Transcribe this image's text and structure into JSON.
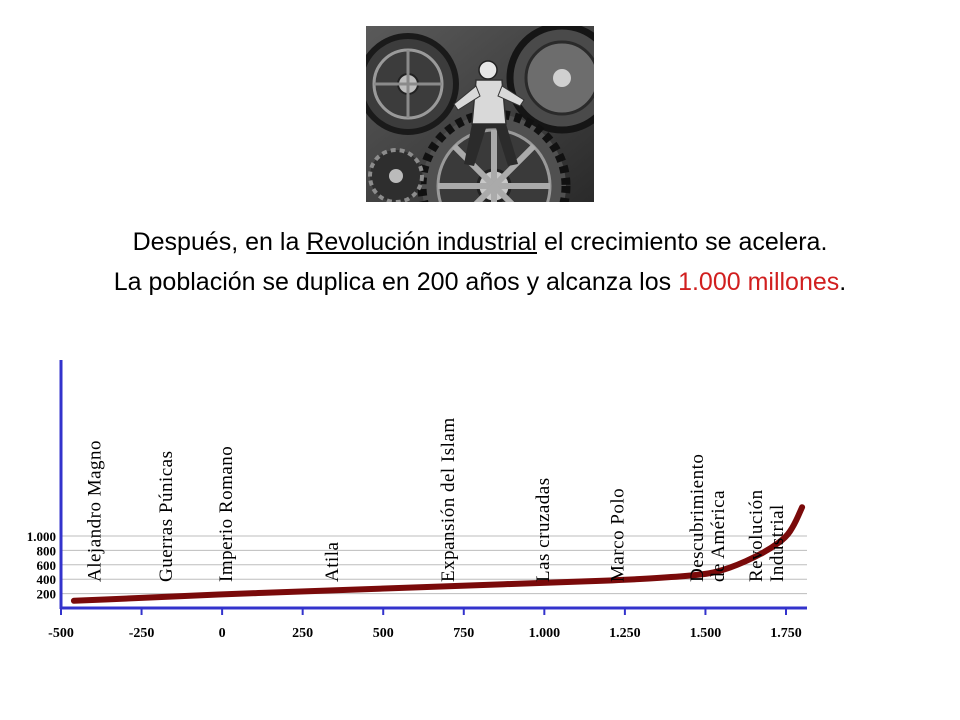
{
  "slide": {
    "photo_alt": "Escena de hombre entre grandes engranajes",
    "line1": {
      "before": "Después, en la ",
      "link": "Revolución industrial",
      "after": " el crecimiento se acelera."
    },
    "line2": {
      "before": "La población se duplica en 200 años y alcanza los ",
      "highlight": "1.000 millones",
      "after": "."
    }
  },
  "colors": {
    "axis": "#3333cc",
    "curve": "#7a0a0a",
    "grid": "#bdbdbd",
    "highlight": "#d11f1f",
    "text": "#000000"
  },
  "chart_data": {
    "type": "line",
    "title": "",
    "xlabel": "",
    "ylabel": "",
    "xlim": [
      -500,
      1800
    ],
    "ylim": [
      0,
      1200
    ],
    "x_ticks": [
      -500,
      -250,
      0,
      250,
      500,
      750,
      1000,
      1250,
      1500,
      1750
    ],
    "x_tick_labels": [
      "-500",
      "-250",
      "0",
      "250",
      "500",
      "750",
      "1.000",
      "1.250",
      "1.500",
      "1.750"
    ],
    "y_ticks": [
      200,
      400,
      600,
      800,
      1000
    ],
    "y_tick_labels": [
      "200",
      "400",
      "600",
      "800",
      "1.000"
    ],
    "grid": "horizontal",
    "series": [
      {
        "x": [
          -460,
          -250,
          0,
          250,
          500,
          750,
          1000,
          1250,
          1400,
          1500,
          1550,
          1600,
          1650,
          1700,
          1750,
          1775,
          1800
        ],
        "y": [
          100,
          140,
          190,
          230,
          270,
          310,
          350,
          390,
          430,
          470,
          520,
          600,
          700,
          820,
          980,
          1150,
          1400
        ]
      }
    ],
    "annotations": [
      {
        "x": -378,
        "lines": [
          "Alejandro Magno"
        ]
      },
      {
        "x": -155,
        "lines": [
          "Guerras Púnicas"
        ]
      },
      {
        "x": 30,
        "lines": [
          "Imperio Romano"
        ]
      },
      {
        "x": 360,
        "lines": [
          "Atila"
        ]
      },
      {
        "x": 720,
        "lines": [
          "Expansión del Islam"
        ]
      },
      {
        "x": 1015,
        "lines": [
          "Las cruzadas"
        ]
      },
      {
        "x": 1245,
        "lines": [
          "Marco Polo"
        ]
      },
      {
        "x": 1492,
        "lines": [
          "Descubrimiento",
          "de América"
        ]
      },
      {
        "x": 1675,
        "lines": [
          "Revolución",
          "Industrial"
        ]
      }
    ]
  }
}
